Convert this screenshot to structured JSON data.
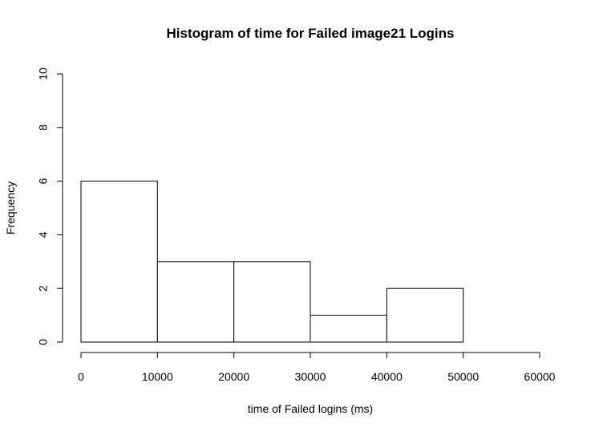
{
  "chart_data": {
    "type": "bar",
    "title": "Histogram of time for Failed image21 Logins",
    "xlabel": "time of Failed logins (ms)",
    "ylabel": "Frequency",
    "bins": [
      {
        "start": 0,
        "end": 10000,
        "count": 6
      },
      {
        "start": 10000,
        "end": 20000,
        "count": 3
      },
      {
        "start": 20000,
        "end": 30000,
        "count": 3
      },
      {
        "start": 30000,
        "end": 40000,
        "count": 1
      },
      {
        "start": 40000,
        "end": 50000,
        "count": 2
      }
    ],
    "xlim": [
      0,
      60000
    ],
    "ylim": [
      0,
      10
    ],
    "x_ticks": [
      0,
      10000,
      20000,
      30000,
      40000,
      50000,
      60000
    ],
    "y_ticks": [
      0,
      2,
      4,
      6,
      8,
      10
    ],
    "grid": false,
    "colors": {
      "bar_fill": "#ffffff",
      "bar_stroke": "#000000"
    }
  }
}
